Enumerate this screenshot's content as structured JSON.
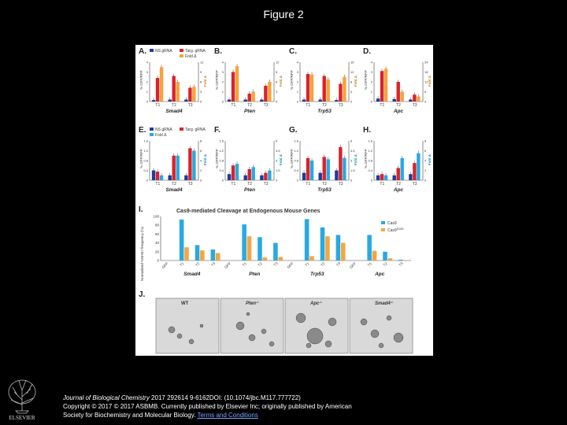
{
  "title": "Figure 2",
  "panels": {
    "A": "A.",
    "B": "B.",
    "C": "C.",
    "D": "D.",
    "E": "E.",
    "F": "F.",
    "G": "G.",
    "H": "H.",
    "I": "I.",
    "J": "J."
  },
  "legend_top": {
    "ns": "NS gRNA",
    "targ": "Targ. gRNA",
    "fold": "Fold Δ"
  },
  "legend_mid": {
    "fold": "Fold Δ"
  },
  "yaxis": "% GFP/RFP",
  "yaxis2": "Fold Δ",
  "xticks": [
    "T1",
    "T2",
    "T3"
  ],
  "genes": [
    "Smad4",
    "Pten",
    "Trp53",
    "Apc"
  ],
  "panel_i": {
    "title": "Cas9-mediated Cleavage at Endogenous Mouse Genes",
    "ylabel": "Normalized %NHEJ frequency (%)",
    "yticks": [
      "100",
      "80",
      "60",
      "40",
      "20",
      "0"
    ],
    "legend": [
      "Cas9",
      "Cas9"
    ],
    "legend_sup": "D10A",
    "xlabels": [
      "GFP",
      "T1",
      "T2",
      "T3",
      "GFP",
      "T1",
      "T2",
      "T3",
      "GFP",
      "T1",
      "T2",
      "T3",
      "GFP",
      "T1",
      "T2",
      "T3"
    ]
  },
  "panel_j": [
    "WT",
    "Pten",
    "Apc",
    "Smad4"
  ],
  "panel_j_sup": "-/-",
  "colors": {
    "ns": "#1f3b9a",
    "targ": "#d8232a",
    "fold": "#f7a23c",
    "fold_cyan": "#2aa8e0",
    "cas9": "#29a9e1",
    "d10a": "#f4a640"
  },
  "chart_data": [
    {
      "type": "bar",
      "panel": "A",
      "categories": [
        "T1",
        "T2",
        "T3"
      ],
      "ylim": [
        0,
        4
      ],
      "y2lim": [
        0,
        12
      ],
      "series": [
        {
          "name": "NS gRNA",
          "values": [
            0.15,
            0.2,
            0.2
          ]
        },
        {
          "name": "Targ. gRNA",
          "values": [
            2.4,
            2.6,
            1.4
          ]
        },
        {
          "name": "Fold Δ",
          "values": [
            10.5,
            6.0,
            4.5
          ]
        }
      ]
    },
    {
      "type": "bar",
      "panel": "B",
      "categories": [
        "T1",
        "T2",
        "T3"
      ],
      "ylim": [
        0,
        4
      ],
      "y2lim": [
        0,
        12
      ],
      "series": [
        {
          "values": [
            0.2,
            0.2,
            0.2
          ]
        },
        {
          "values": [
            3.0,
            0.8,
            1.6
          ]
        },
        {
          "values": [
            10.8,
            3.0,
            6.0
          ]
        }
      ]
    },
    {
      "type": "bar",
      "panel": "C",
      "categories": [
        "T1",
        "T2",
        "T3"
      ],
      "ylim": [
        0,
        4
      ],
      "y2lim": [
        0,
        16
      ],
      "series": [
        {
          "values": [
            0.2,
            0.2,
            0.15
          ]
        },
        {
          "values": [
            2.8,
            2.6,
            1.8
          ]
        },
        {
          "values": [
            11.0,
            9.0,
            10.0
          ]
        }
      ]
    },
    {
      "type": "bar",
      "panel": "D",
      "categories": [
        "T1",
        "T2",
        "T3"
      ],
      "ylim": [
        0,
        4
      ],
      "y2lim": [
        0,
        24
      ],
      "series": [
        {
          "values": [
            0.3,
            0.25,
            0.2
          ]
        },
        {
          "values": [
            3.1,
            2.0,
            0.7
          ]
        },
        {
          "values": [
            20.0,
            6.0,
            3.0
          ]
        }
      ]
    },
    {
      "type": "bar",
      "panel": "E",
      "categories": [
        "T1",
        "T2",
        "T3"
      ],
      "ylim": [
        0,
        1.6
      ],
      "y2lim": [
        0,
        8
      ],
      "series": [
        {
          "values": [
            0.4,
            0.2,
            0.2
          ]
        },
        {
          "values": [
            0.35,
            1.0,
            1.3
          ]
        },
        {
          "values": [
            1.0,
            5.0,
            6.0
          ]
        }
      ]
    },
    {
      "type": "bar",
      "panel": "F",
      "categories": [
        "T1",
        "T2",
        "T3"
      ],
      "ylim": [
        0,
        1.6
      ],
      "y2lim": [
        0,
        6
      ],
      "series": [
        {
          "values": [
            0.25,
            0.2,
            0.2
          ]
        },
        {
          "values": [
            0.6,
            0.45,
            0.3
          ]
        },
        {
          "values": [
            2.5,
            2.0,
            1.5
          ]
        }
      ]
    },
    {
      "type": "bar",
      "panel": "G",
      "categories": [
        "T1",
        "T2",
        "T3"
      ],
      "ylim": [
        0,
        1.6
      ],
      "y2lim": [
        0,
        6
      ],
      "series": [
        {
          "values": [
            0.3,
            0.3,
            0.4
          ]
        },
        {
          "values": [
            0.9,
            0.95,
            1.35
          ]
        },
        {
          "values": [
            3.0,
            3.2,
            3.4
          ]
        }
      ]
    },
    {
      "type": "bar",
      "panel": "H",
      "categories": [
        "T1",
        "T2",
        "T3"
      ],
      "ylim": [
        0,
        1.6
      ],
      "y2lim": [
        0,
        8
      ],
      "series": [
        {
          "values": [
            0.2,
            0.2,
            0.25
          ]
        },
        {
          "values": [
            0.25,
            0.5,
            0.7
          ]
        },
        {
          "values": [
            1.0,
            4.5,
            5.5
          ]
        }
      ]
    },
    {
      "type": "bar",
      "panel": "I",
      "title": "Cas9-mediated Cleavage at Endogenous Mouse Genes",
      "ylabel": "Normalized %NHEJ frequency (%)",
      "ylim": [
        0,
        100
      ],
      "categories": [
        "GFP",
        "T1",
        "T2",
        "T3",
        "GFP",
        "T1",
        "T2",
        "T3",
        "GFP",
        "T1",
        "T2",
        "T3",
        "GFP",
        "T1",
        "T2",
        "T3"
      ],
      "series": [
        {
          "name": "Cas9",
          "values": [
            0,
            93,
            35,
            25,
            0,
            82,
            53,
            40,
            0,
            94,
            75,
            58,
            0,
            58,
            20,
            2
          ]
        },
        {
          "name": "Cas9 D10A",
          "values": [
            0,
            30,
            23,
            17,
            0,
            55,
            7,
            8,
            0,
            10,
            55,
            40,
            0,
            22,
            5,
            1
          ]
        }
      ]
    }
  ]
}
